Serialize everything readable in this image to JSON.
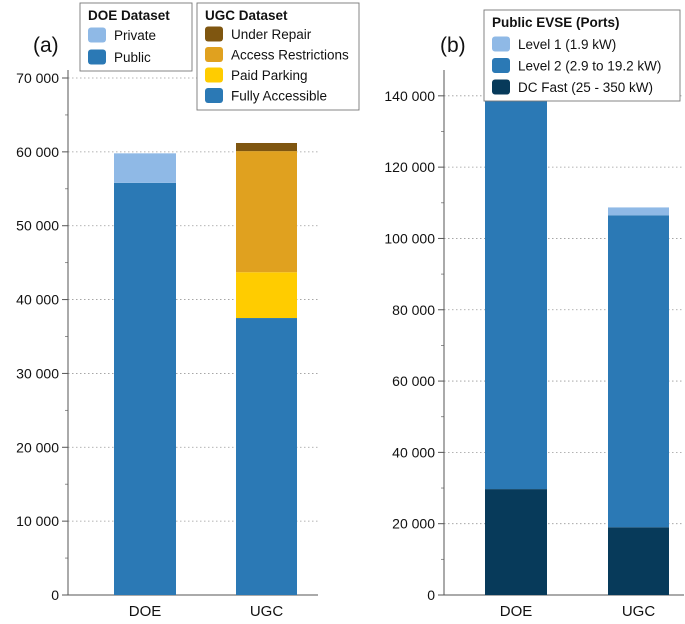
{
  "panels": {
    "a_label": "(a)",
    "b_label": "(b)"
  },
  "chart_data": [
    {
      "type": "bar",
      "stacked": true,
      "categories": [
        "DOE",
        "UGC"
      ],
      "ylim": [
        0,
        70000
      ],
      "yticks": [
        "0",
        "10 000",
        "20 000",
        "30 000",
        "40 000",
        "50 000",
        "60 000",
        "70 000"
      ],
      "grid": "horizontal dotted",
      "series": [
        {
          "name": "Public",
          "values": [
            55800,
            null
          ],
          "color": "#2b79b5"
        },
        {
          "name": "Private",
          "values": [
            4000,
            null
          ],
          "color": "#8fb9e6"
        },
        {
          "name": "Fully Accessible",
          "values": [
            null,
            37500
          ],
          "color": "#2b79b5"
        },
        {
          "name": "Paid Parking",
          "values": [
            null,
            6200
          ],
          "color": "#ffcc00"
        },
        {
          "name": "Access Restrictions",
          "values": [
            null,
            16400
          ],
          "color": "#e0a11f"
        },
        {
          "name": "Under Repair",
          "values": [
            null,
            1100
          ],
          "color": "#7f5610"
        }
      ],
      "legends": [
        {
          "title": "DOE Dataset",
          "placement": "top-left",
          "items": [
            {
              "label": "Private",
              "color": "#8fb9e6"
            },
            {
              "label": "Public",
              "color": "#2b79b5"
            }
          ]
        },
        {
          "title": "UGC Dataset",
          "placement": "top-right",
          "items": [
            {
              "label": "Under Repair",
              "color": "#7f5610"
            },
            {
              "label": "Access Restrictions",
              "color": "#e0a11f"
            },
            {
              "label": "Paid Parking",
              "color": "#ffcc00"
            },
            {
              "label": "Fully Accessible",
              "color": "#2b79b5"
            }
          ]
        }
      ]
    },
    {
      "type": "bar",
      "stacked": true,
      "categories": [
        "DOE",
        "UGC"
      ],
      "ylim": [
        0,
        145000
      ],
      "yticks": [
        "0",
        "20 000",
        "40 000",
        "60 000",
        "80 000",
        "100 000",
        "120 000",
        "140 000"
      ],
      "grid": "horizontal dotted",
      "series": [
        {
          "name": "DC Fast (25 - 350 kW)",
          "values": [
            29700,
            19000
          ],
          "color": "#073a5a"
        },
        {
          "name": "Level 2 (2.9 to 19.2 kW)",
          "values": [
            111300,
            87500
          ],
          "color": "#2b79b5"
        },
        {
          "name": "Level 1 (1.9 kW)",
          "values": [
            1000,
            2200
          ],
          "color": "#8fb9e6"
        }
      ],
      "legends": [
        {
          "title": "Public EVSE (Ports)",
          "placement": "top",
          "items": [
            {
              "label": "Level 1 (1.9 kW)",
              "color": "#8fb9e6"
            },
            {
              "label": "Level 2 (2.9 to 19.2 kW)",
              "color": "#2b79b5"
            },
            {
              "label": "DC Fast (25 - 350 kW)",
              "color": "#073a5a"
            }
          ]
        }
      ]
    }
  ]
}
